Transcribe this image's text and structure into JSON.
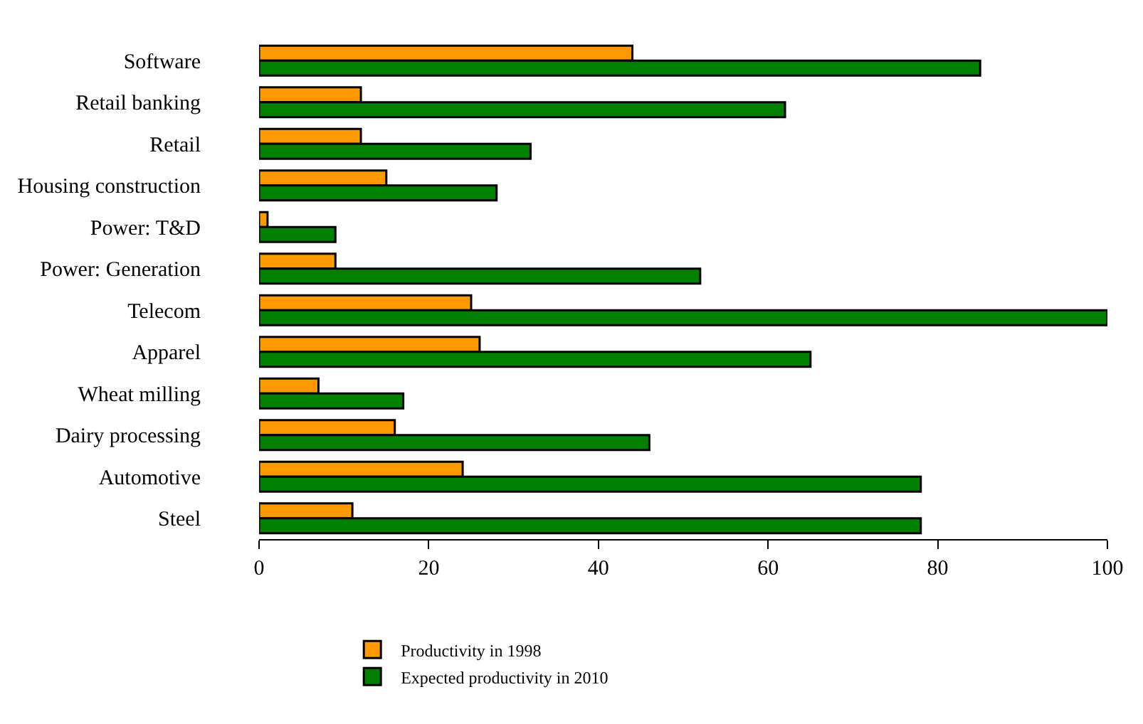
{
  "chart_data": {
    "type": "bar",
    "orientation": "horizontal",
    "categories": [
      "Software",
      "Retail banking",
      "Retail",
      "Housing construction",
      "Power: T&D",
      "Power: Generation",
      "Telecom",
      "Apparel",
      "Wheat milling",
      "Dairy processing",
      "Automotive",
      "Steel"
    ],
    "series": [
      {
        "name": "Productivity in 1998",
        "color": "#ff9900",
        "values": [
          44,
          12,
          12,
          15,
          1,
          9,
          25,
          26,
          7,
          16,
          24,
          11
        ]
      },
      {
        "name": "Expected productivity in 2010",
        "color": "#008000",
        "values": [
          85,
          62,
          32,
          28,
          9,
          52,
          100,
          65,
          17,
          46,
          78,
          78
        ]
      }
    ],
    "xlim": [
      0,
      100
    ],
    "xticks": [
      0,
      20,
      40,
      60,
      80,
      100
    ],
    "legend": "bottom"
  }
}
